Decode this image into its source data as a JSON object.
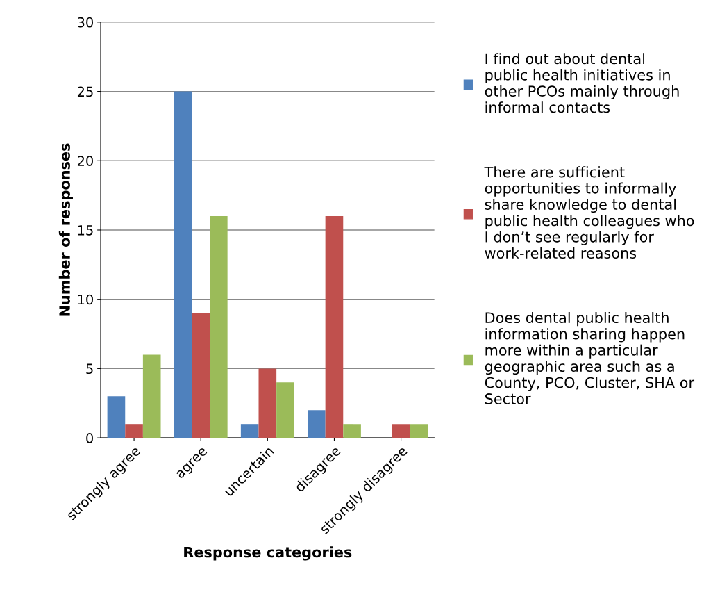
{
  "chart_data": {
    "type": "bar",
    "xlabel": "Response categories",
    "ylabel": "Number of responses",
    "categories": [
      "strongly agree",
      "agree",
      "uncertain",
      "disagree",
      "strongly disagree"
    ],
    "series": [
      {
        "name": " I find out about dental public health initiatives in other PCOs mainly through informal contacts",
        "color": "#4f81bd",
        "values": [
          3,
          25,
          1,
          2,
          0
        ]
      },
      {
        "name": "There are sufficient opportunities to informally share knowledge to dental public health colleagues who I don’t see regularly for work-related reasons",
        "color": "#c0504d",
        "values": [
          1,
          9,
          5,
          16,
          1
        ]
      },
      {
        "name": "Does dental public health information sharing happen more within a particular geographic area such as a County, PCO, Cluster, SHA or Sector",
        "color": "#9bbb59",
        "values": [
          6,
          16,
          4,
          1,
          1
        ]
      }
    ],
    "ylim": [
      0,
      30
    ],
    "yticks": [
      0,
      5,
      10,
      15,
      20,
      25,
      30
    ],
    "grid": "y",
    "legend": "right"
  }
}
